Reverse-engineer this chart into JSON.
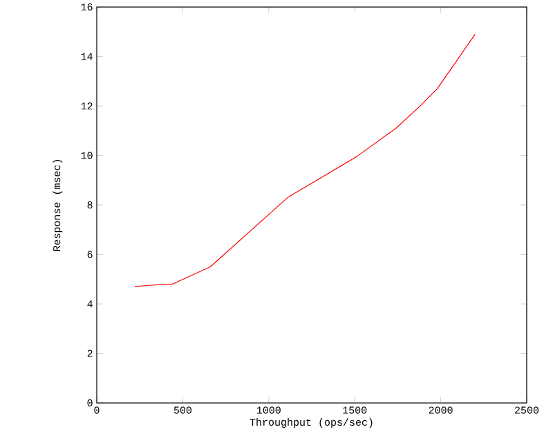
{
  "chart_data": {
    "type": "line",
    "xlabel": "Throughput (ops/sec)",
    "ylabel": "Response (msec)",
    "x": [
      220,
      300,
      440,
      660,
      1110,
      1510,
      1740,
      1880,
      1980,
      2200
    ],
    "series": [
      {
        "color": "#ff0000",
        "values": [
          4.7,
          4.75,
          4.8,
          5.5,
          8.3,
          9.95,
          11.1,
          12,
          12.7,
          14.9
        ]
      }
    ],
    "xlim": [
      0,
      2500
    ],
    "ylim": [
      0,
      16
    ],
    "xticks": [
      0,
      500,
      1000,
      1500,
      2000,
      2500
    ],
    "yticks": [
      0,
      2,
      4,
      6,
      8,
      10,
      12,
      14,
      16
    ],
    "grid": false,
    "marker": "none",
    "line_style": "solid"
  }
}
